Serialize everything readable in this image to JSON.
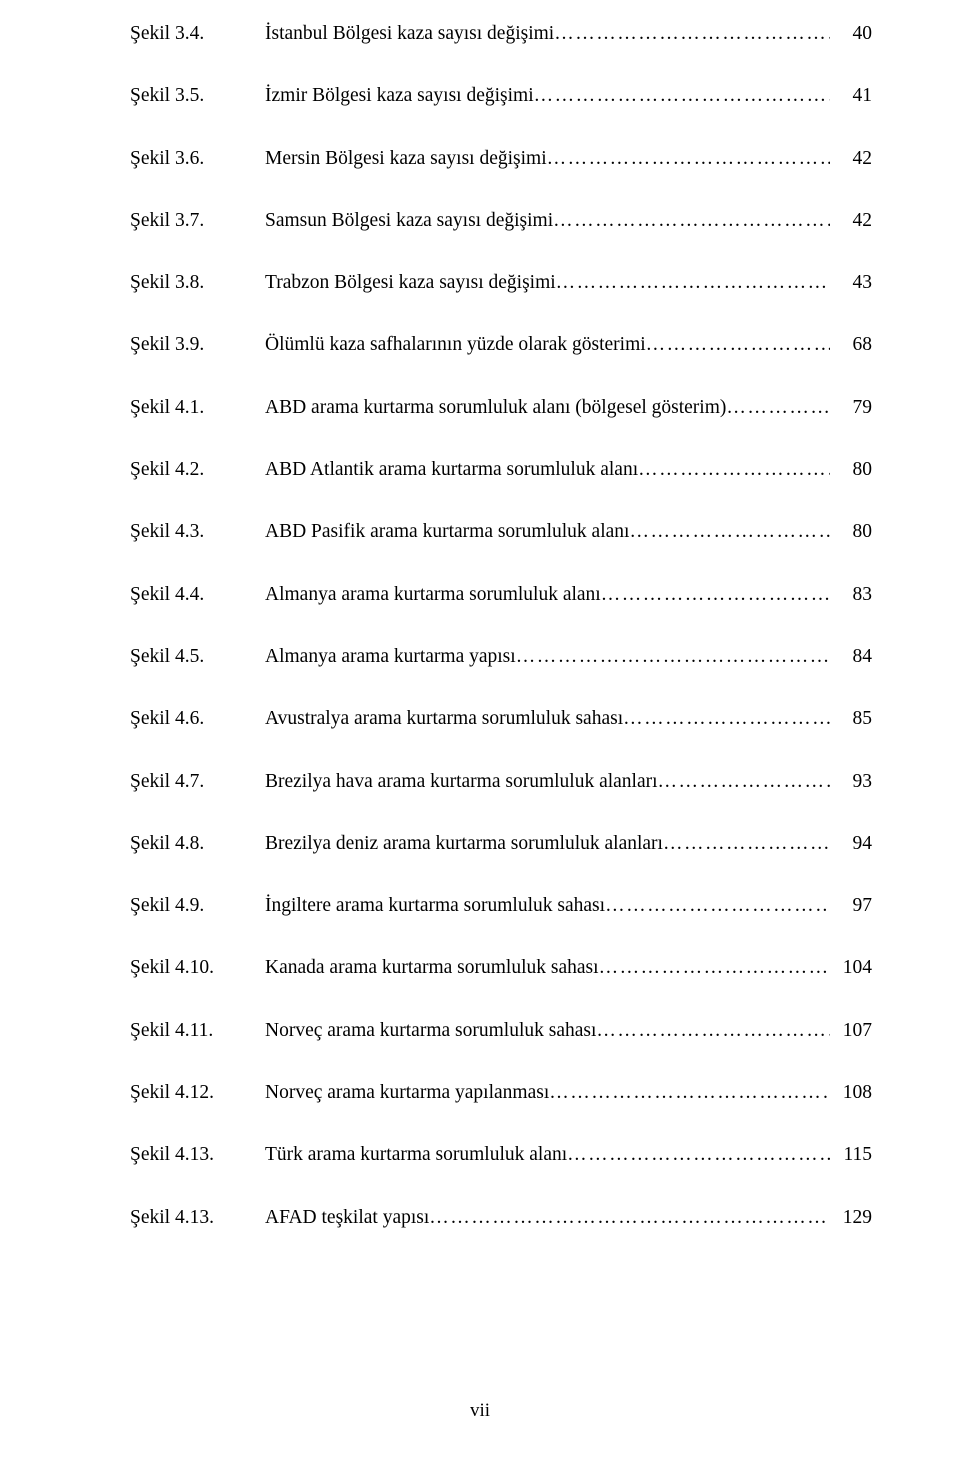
{
  "entries": [
    {
      "label": "Şekil 3.4.",
      "title": "İstanbul Bölgesi kaza sayısı değişimi",
      "page": "40"
    },
    {
      "label": "Şekil 3.5.",
      "title": "İzmir Bölgesi kaza sayısı değişimi",
      "page": "41"
    },
    {
      "label": "Şekil 3.6.",
      "title": "Mersin Bölgesi kaza sayısı değişimi",
      "page": "42"
    },
    {
      "label": "Şekil 3.7.",
      "title": "Samsun Bölgesi kaza sayısı değişimi",
      "page": "42"
    },
    {
      "label": "Şekil 3.8.",
      "title": "Trabzon Bölgesi kaza sayısı değişimi",
      "page": "43"
    },
    {
      "label": "Şekil 3.9.",
      "title": "Ölümlü kaza safhalarının yüzde olarak gösterimi",
      "page": "68"
    },
    {
      "label": "Şekil 4.1.",
      "title": "ABD arama kurtarma sorumluluk alanı (bölgesel gösterim)",
      "page": "79"
    },
    {
      "label": "Şekil 4.2.",
      "title": "ABD Atlantik arama kurtarma sorumluluk alanı",
      "page": "80"
    },
    {
      "label": "Şekil 4.3.",
      "title": "ABD Pasifik arama kurtarma sorumluluk alanı",
      "page": "80"
    },
    {
      "label": "Şekil 4.4.",
      "title": "Almanya arama kurtarma sorumluluk alanı",
      "page": "83"
    },
    {
      "label": "Şekil 4.5.",
      "title": "Almanya arama kurtarma yapısı",
      "page": "84"
    },
    {
      "label": "Şekil 4.6.",
      "title": "Avustralya arama kurtarma sorumluluk sahası",
      "page": "85"
    },
    {
      "label": "Şekil 4.7.",
      "title": "Brezilya hava arama kurtarma sorumluluk alanları",
      "page": "93"
    },
    {
      "label": "Şekil 4.8.",
      "title": "Brezilya deniz arama kurtarma sorumluluk alanları",
      "page": "94"
    },
    {
      "label": "Şekil 4.9.",
      "title": "İngiltere arama kurtarma sorumluluk sahası",
      "page": "97"
    },
    {
      "label": "Şekil 4.10.",
      "title": "Kanada arama kurtarma sorumluluk sahası",
      "page": "104"
    },
    {
      "label": "Şekil 4.11.",
      "title": "Norveç arama kurtarma sorumluluk sahası",
      "page": "107"
    },
    {
      "label": "Şekil 4.12.",
      "title": "Norveç arama kurtarma yapılanması",
      "page": "108"
    },
    {
      "label": "Şekil 4.13.",
      "title": "Türk arama kurtarma sorumluluk alanı",
      "page": "115"
    },
    {
      "label": "Şekil 4.13.",
      "title": "AFAD teşkilat yapısı",
      "page": "129"
    }
  ],
  "footer": {
    "page_number": "vii"
  },
  "style": {
    "font_family": "Times New Roman",
    "font_size_pt": 15,
    "text_color": "#000000",
    "background_color": "#ffffff"
  }
}
